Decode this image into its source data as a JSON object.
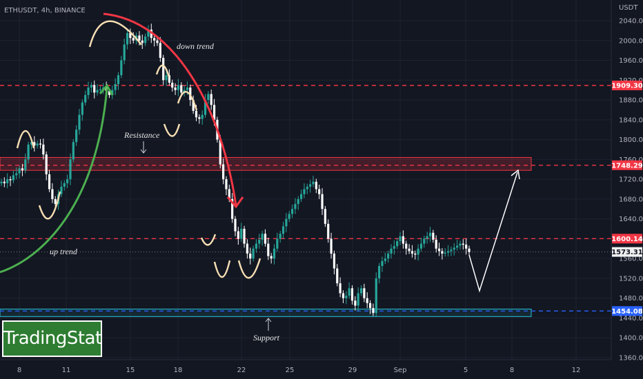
{
  "header": {
    "symbol": "ETHUSDT, 4h, BINANCE"
  },
  "logo": {
    "text": "TradingStat"
  },
  "colors": {
    "background": "#131722",
    "grid": "#1f2330",
    "up": "#26a69a",
    "down": "#ffffff",
    "resistance_line": "#f23645",
    "support_line": "#2962ff",
    "resistance_zone": "#f23645",
    "support_zone": "#26c6da",
    "up_trend_arrow": "#4caf50",
    "down_trend_arrow": "#f23645",
    "pattern_curves": "#f5deb3",
    "projection": "#ffffff"
  },
  "chart_data": {
    "type": "candlestick",
    "title": "ETHUSDT, 4h, BINANCE",
    "currency_label": "USDT",
    "x_tick_labels": [
      "8",
      "11",
      "15",
      "18",
      "22",
      "25",
      "29",
      "Sep",
      "5",
      "8",
      "12"
    ],
    "y_ticks": [
      2040,
      2000,
      1960,
      1920,
      1880,
      1840,
      1800,
      1760,
      1720,
      1680,
      1640,
      1600,
      1560,
      1520,
      1480,
      1440,
      1400,
      1360
    ],
    "ylim": [
      1350,
      2060
    ],
    "price_levels": [
      {
        "label": "1909.30",
        "value": 1909.3,
        "style": "red-dashed"
      },
      {
        "label": "1748.29",
        "value": 1748.29,
        "style": "red-dashed"
      },
      {
        "label": "1600.14",
        "value": 1600.14,
        "style": "red-dashed"
      },
      {
        "label": "1573.31",
        "value": 1573.31,
        "style": "current"
      },
      {
        "label": "1454.08",
        "value": 1454.08,
        "style": "blue-dashed"
      }
    ],
    "zones": [
      {
        "name": "resistance",
        "from": 1738,
        "to": 1764
      },
      {
        "name": "support",
        "from": 1443,
        "to": 1458
      }
    ],
    "annotations": [
      {
        "text": "down trend"
      },
      {
        "text": "Resistance"
      },
      {
        "text": "up trend"
      },
      {
        "text": "Support"
      }
    ],
    "series": [
      {
        "values": [
          1715,
          1712,
          1720,
          1718,
          1728,
          1732,
          1742,
          1738,
          1760,
          1790,
          1795,
          1788,
          1792,
          1790,
          1770,
          1730,
          1700,
          1680,
          1670,
          1690,
          1705,
          1712,
          1720,
          1760,
          1795,
          1820,
          1850,
          1875,
          1890,
          1905,
          1910,
          1895,
          1900,
          1902,
          1905,
          1898,
          1890,
          1900,
          1912,
          1930,
          1960,
          1992,
          2015,
          2005,
          2000,
          2010,
          2000,
          1995,
          2008,
          2022,
          2005,
          2000,
          1995,
          1965,
          1920,
          1930,
          1915,
          1905,
          1900,
          1910,
          1895,
          1900,
          1905,
          1880,
          1858,
          1845,
          1842,
          1850,
          1880,
          1892,
          1870,
          1840,
          1800,
          1750,
          1720,
          1700,
          1680,
          1640,
          1615,
          1600,
          1620,
          1590,
          1570,
          1560,
          1580,
          1590,
          1598,
          1610,
          1590,
          1565,
          1560,
          1580,
          1600,
          1610,
          1625,
          1640,
          1650,
          1660,
          1670,
          1680,
          1690,
          1700,
          1705,
          1710,
          1715,
          1700,
          1690,
          1660,
          1630,
          1600,
          1570,
          1540,
          1510,
          1490,
          1480,
          1485,
          1500,
          1475,
          1465,
          1490,
          1500,
          1480,
          1470,
          1460,
          1450,
          1520,
          1545,
          1555,
          1560,
          1570,
          1580,
          1585,
          1595,
          1605,
          1590,
          1580,
          1575,
          1570,
          1568,
          1580,
          1590,
          1600,
          1605,
          1612,
          1598,
          1580,
          1575,
          1570,
          1572,
          1575,
          1578,
          1582,
          1586,
          1590,
          1588,
          1580,
          1573
        ]
      }
    ]
  }
}
